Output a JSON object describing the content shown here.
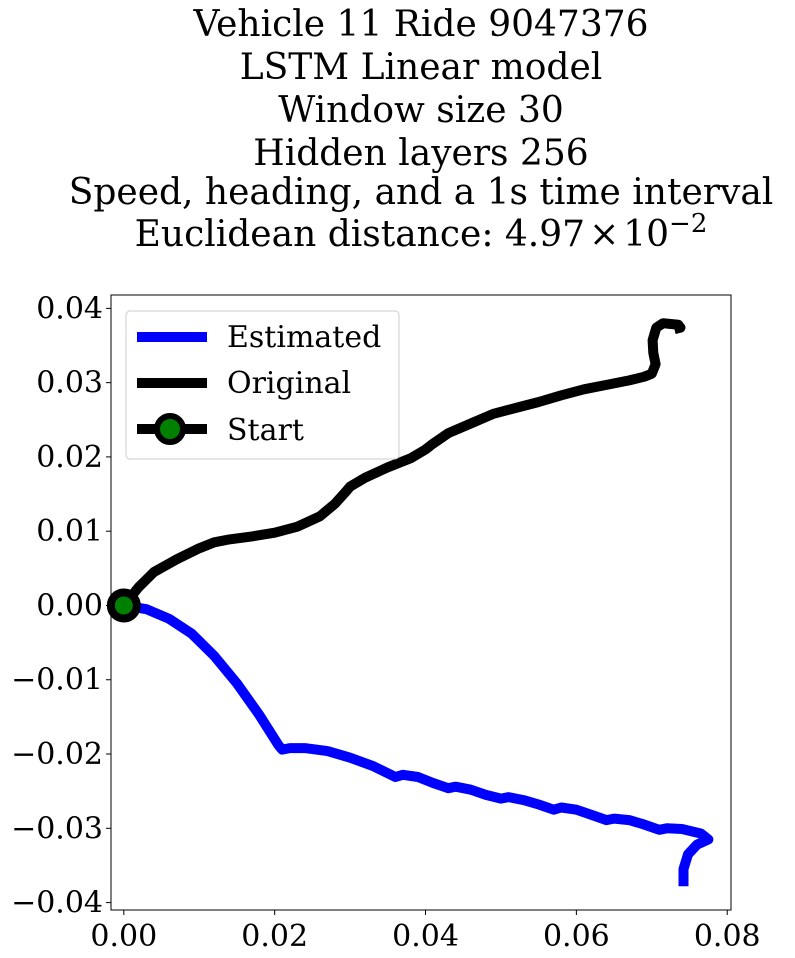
{
  "chart_data": {
    "type": "line",
    "title_lines": [
      "Vehicle 11 Ride 9047376",
      "LSTM Linear model",
      "Window size 30",
      "Hidden layers 256",
      "Speed, heading, and a 1s time interval"
    ],
    "title_metric_prefix": "Euclidean distance: ",
    "title_metric_mantissa": "4.97",
    "title_metric_times": "×",
    "title_metric_base": "10",
    "title_metric_exponent": "−2",
    "xlabel": "",
    "ylabel": "",
    "xlim": [
      -0.0017,
      0.0805
    ],
    "ylim": [
      -0.041,
      0.0418
    ],
    "x_ticks": [
      0.0,
      0.02,
      0.04,
      0.06,
      0.08
    ],
    "x_tick_labels": [
      "0.00",
      "0.02",
      "0.04",
      "0.06",
      "0.08"
    ],
    "y_ticks": [
      0.04,
      0.03,
      0.02,
      0.01,
      0.0,
      -0.01,
      -0.02,
      -0.03,
      -0.04
    ],
    "y_tick_labels": [
      "0.04",
      "0.03",
      "0.02",
      "0.01",
      "0.00",
      "−0.01",
      "−0.02",
      "−0.03",
      "−0.04"
    ],
    "grid": false,
    "legend_position": "upper-left",
    "series": [
      {
        "name": "Estimated",
        "color": "#0000ff",
        "x": [
          0.0,
          0.003,
          0.006,
          0.009,
          0.012,
          0.015,
          0.018,
          0.0205,
          0.021,
          0.022,
          0.024,
          0.027,
          0.03,
          0.033,
          0.036,
          0.037,
          0.039,
          0.041,
          0.043,
          0.044,
          0.046,
          0.048,
          0.05,
          0.051,
          0.053,
          0.055,
          0.057,
          0.058,
          0.06,
          0.062,
          0.064,
          0.065,
          0.067,
          0.069,
          0.071,
          0.072,
          0.074,
          0.0765,
          0.0775,
          0.076,
          0.0748,
          0.0742,
          0.0742
        ],
        "y": [
          0.0,
          -0.0005,
          -0.0018,
          -0.0038,
          -0.0068,
          -0.0105,
          -0.0148,
          -0.0188,
          -0.0194,
          -0.0192,
          -0.0192,
          -0.0196,
          -0.0205,
          -0.0216,
          -0.0231,
          -0.0228,
          -0.0231,
          -0.0239,
          -0.0246,
          -0.0244,
          -0.0248,
          -0.0255,
          -0.026,
          -0.0258,
          -0.0262,
          -0.0268,
          -0.0275,
          -0.0272,
          -0.0275,
          -0.0282,
          -0.0289,
          -0.0287,
          -0.0289,
          -0.0295,
          -0.0302,
          -0.03,
          -0.0301,
          -0.0307,
          -0.0315,
          -0.0322,
          -0.0335,
          -0.0355,
          -0.0378
        ]
      },
      {
        "name": "Original",
        "color": "#000000",
        "x": [
          0.0,
          0.002,
          0.004,
          0.007,
          0.01,
          0.012,
          0.014,
          0.017,
          0.02,
          0.023,
          0.026,
          0.028,
          0.0295,
          0.03,
          0.032,
          0.035,
          0.038,
          0.04,
          0.041,
          0.043,
          0.046,
          0.049,
          0.052,
          0.055,
          0.058,
          0.061,
          0.064,
          0.067,
          0.069,
          0.07,
          0.0705,
          0.0702,
          0.0701,
          0.0706,
          0.0715,
          0.0725,
          0.0735,
          0.0738,
          0.073
        ],
        "y": [
          0.0,
          0.0025,
          0.0045,
          0.0062,
          0.0077,
          0.0085,
          0.0089,
          0.0093,
          0.0098,
          0.0106,
          0.012,
          0.0137,
          0.0154,
          0.016,
          0.0172,
          0.0186,
          0.0198,
          0.021,
          0.0218,
          0.0232,
          0.0245,
          0.0258,
          0.0266,
          0.0274,
          0.0283,
          0.0291,
          0.0297,
          0.0303,
          0.0308,
          0.0312,
          0.0325,
          0.034,
          0.0357,
          0.0374,
          0.038,
          0.0379,
          0.0378,
          0.0374,
          0.0372
        ]
      }
    ],
    "start_marker": {
      "name": "Start",
      "x": 0.0,
      "y": 0.0,
      "edge_color": "#000000",
      "face_color": "#008000"
    },
    "legend_entries": [
      {
        "label": "Estimated",
        "color": "#0000ff",
        "marker": false
      },
      {
        "label": "Original",
        "color": "#000000",
        "marker": false
      },
      {
        "label": "Start",
        "color": "#000000",
        "marker": true
      }
    ]
  }
}
